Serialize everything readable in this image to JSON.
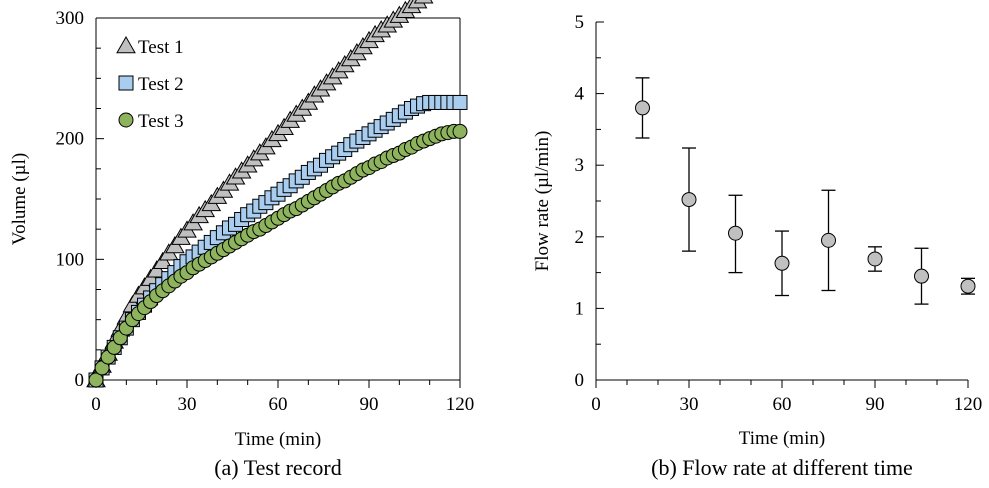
{
  "chart_data": [
    {
      "type": "scatter",
      "caption": "(a) Test record",
      "xlabel": "Time (min)",
      "ylabel": "Volume (µl)",
      "xlim": [
        0,
        120
      ],
      "ylim": [
        0,
        300
      ],
      "xticks": [
        "0",
        "30",
        "60",
        "90",
        "120"
      ],
      "yticks": [
        "0",
        "100",
        "200",
        "300"
      ],
      "legend": "top-left",
      "series": [
        {
          "name": "Test 1",
          "marker": "triangle",
          "color": "#c0c0c0",
          "x": [
            0,
            2,
            4,
            6,
            8,
            10,
            12,
            14,
            16,
            18,
            20,
            22,
            24,
            26,
            28,
            30,
            32,
            34,
            36,
            38,
            40,
            42,
            44,
            46,
            48,
            50,
            52,
            54,
            56,
            58,
            60,
            62,
            64,
            66,
            68,
            70,
            72,
            74,
            76,
            78,
            80,
            82,
            84,
            86,
            88,
            90,
            92,
            94,
            96,
            98,
            100,
            102,
            104,
            106,
            108,
            110
          ],
          "y": [
            0,
            12,
            22,
            32,
            42,
            52,
            62,
            70,
            77,
            84,
            91,
            98,
            105,
            111,
            118,
            124,
            130,
            136,
            141,
            146,
            152,
            157,
            163,
            168,
            173,
            178,
            183,
            188,
            193,
            199,
            204,
            209,
            215,
            220,
            225,
            230,
            236,
            241,
            246,
            251,
            256,
            261,
            266,
            271,
            276,
            281,
            286,
            290,
            294,
            298,
            302,
            306,
            310,
            314,
            318,
            322
          ]
        },
        {
          "name": "Test 2",
          "marker": "square",
          "color": "#a9cdee",
          "x": [
            0,
            2,
            4,
            6,
            8,
            10,
            12,
            14,
            16,
            18,
            20,
            22,
            24,
            26,
            28,
            30,
            32,
            34,
            36,
            38,
            40,
            42,
            44,
            46,
            48,
            50,
            52,
            54,
            56,
            58,
            60,
            62,
            64,
            66,
            68,
            70,
            72,
            74,
            76,
            78,
            80,
            82,
            84,
            86,
            88,
            90,
            92,
            94,
            96,
            98,
            100,
            102,
            104,
            106,
            108,
            110,
            112,
            114,
            116,
            118,
            120
          ],
          "y": [
            0,
            10,
            19,
            27,
            35,
            43,
            50,
            56,
            62,
            68,
            74,
            79,
            84,
            89,
            94,
            98,
            102,
            106,
            110,
            114,
            118,
            122,
            126,
            129,
            133,
            137,
            140,
            144,
            147,
            151,
            154,
            158,
            161,
            165,
            168,
            172,
            175,
            178,
            182,
            185,
            188,
            191,
            195,
            198,
            201,
            204,
            207,
            210,
            213,
            216,
            219,
            222,
            225,
            227,
            229,
            230,
            230,
            230,
            230,
            230,
            230
          ]
        },
        {
          "name": "Test 3",
          "marker": "circle",
          "color": "#8db35c",
          "x": [
            0,
            2,
            4,
            6,
            8,
            10,
            12,
            14,
            16,
            18,
            20,
            22,
            24,
            26,
            28,
            30,
            32,
            34,
            36,
            38,
            40,
            42,
            44,
            46,
            48,
            50,
            52,
            54,
            56,
            58,
            60,
            62,
            64,
            66,
            68,
            70,
            72,
            74,
            76,
            78,
            80,
            82,
            84,
            86,
            88,
            90,
            92,
            94,
            96,
            98,
            100,
            102,
            104,
            106,
            108,
            110,
            112,
            114,
            116,
            118,
            120
          ],
          "y": [
            0,
            10,
            19,
            27,
            35,
            43,
            50,
            55,
            60,
            65,
            70,
            74,
            78,
            82,
            86,
            89,
            93,
            96,
            99,
            102,
            105,
            108,
            111,
            114,
            117,
            120,
            123,
            125,
            128,
            131,
            134,
            137,
            140,
            142,
            145,
            148,
            151,
            154,
            157,
            160,
            163,
            165,
            168,
            171,
            174,
            176,
            179,
            181,
            184,
            186,
            188,
            191,
            193,
            196,
            198,
            200,
            202,
            204,
            205,
            206,
            206
          ]
        }
      ]
    },
    {
      "type": "scatter",
      "caption": "(b) Flow rate at different time",
      "xlabel": "Time (min)",
      "ylabel": "Flow rate (µl/min)",
      "xlim": [
        0,
        120
      ],
      "ylim": [
        0,
        5
      ],
      "xticks": [
        "0",
        "30",
        "60",
        "90",
        "120"
      ],
      "yticks": [
        "0",
        "1",
        "2",
        "3",
        "4",
        "5"
      ],
      "marker_color": "#c0c0c0",
      "x": [
        15,
        30,
        45,
        60,
        75,
        90,
        105,
        120
      ],
      "y": [
        3.8,
        2.52,
        2.05,
        1.63,
        1.95,
        1.69,
        1.45,
        1.31
      ],
      "err_low": [
        3.38,
        1.8,
        1.5,
        1.18,
        1.25,
        1.52,
        1.06,
        1.2
      ],
      "err_high": [
        4.22,
        3.24,
        2.58,
        2.08,
        2.65,
        1.86,
        1.84,
        1.42
      ]
    }
  ]
}
